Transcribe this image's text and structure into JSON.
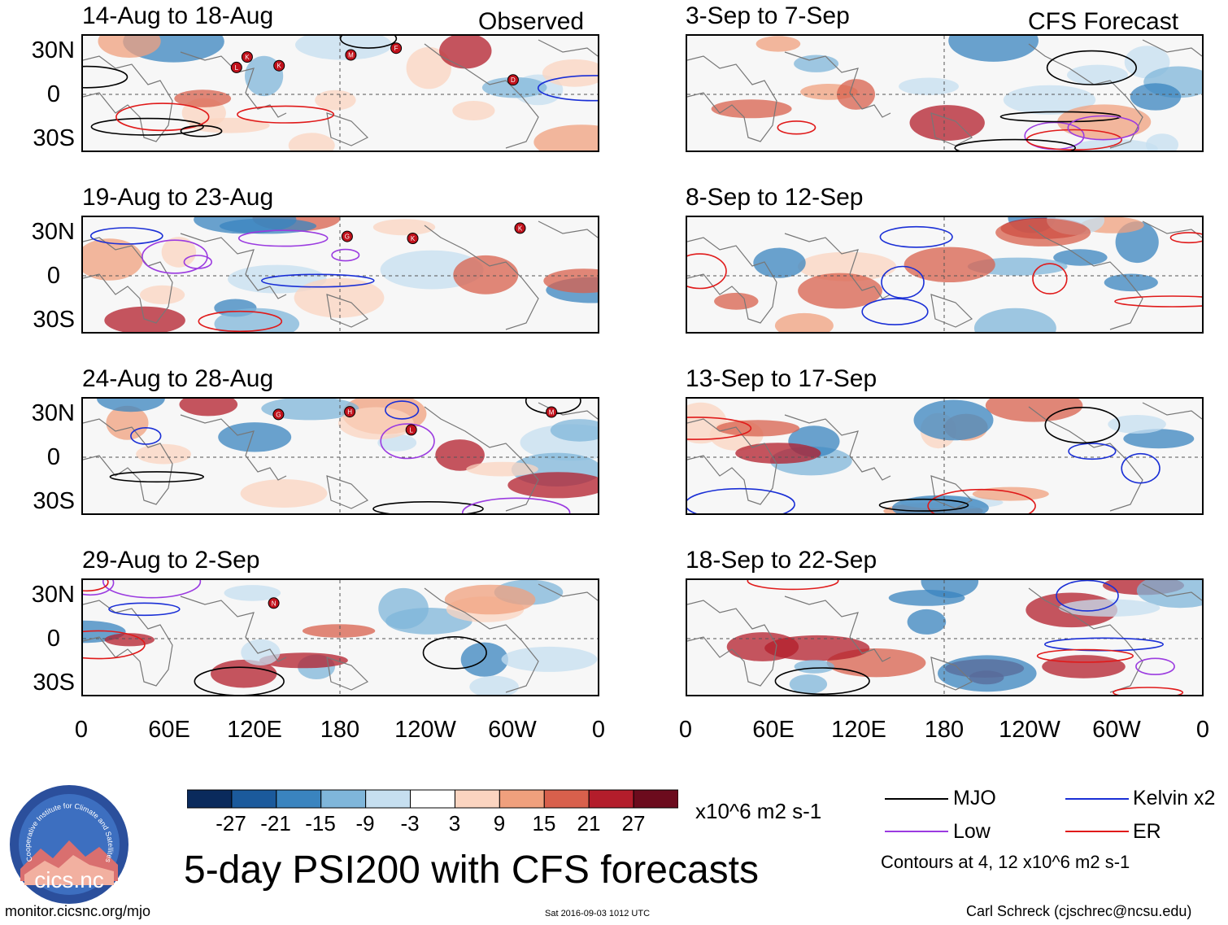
{
  "left_column_tag": "Observed",
  "right_column_tag": "CFS Forecast",
  "observed_panels": [
    {
      "title": "14-Aug to 18-Aug",
      "storm_labels": [
        "L",
        "D",
        "K",
        "K",
        "F",
        "M"
      ]
    },
    {
      "title": "19-Aug to 23-Aug",
      "storm_labels": [
        "K",
        "K",
        "G"
      ]
    },
    {
      "title": "24-Aug to 28-Aug",
      "storm_labels": [
        "L",
        "M",
        "H",
        "G"
      ]
    },
    {
      "title": "29-Aug to 2-Sep",
      "storm_labels": [
        "N"
      ]
    }
  ],
  "forecast_panels": [
    {
      "title": "3-Sep to 7-Sep"
    },
    {
      "title": "8-Sep to 12-Sep"
    },
    {
      "title": "13-Sep to 17-Sep"
    },
    {
      "title": "18-Sep to 22-Sep"
    }
  ],
  "lat_labels": [
    "30N",
    "0",
    "30S"
  ],
  "lon_labels": [
    "0",
    "60E",
    "120E",
    "180",
    "120W",
    "60W",
    "0"
  ],
  "colorbar": {
    "units": "x10^6 m2 s-1",
    "ticks": [
      "-27",
      "-21",
      "-15",
      "-9",
      "-3",
      "3",
      "9",
      "15",
      "21",
      "27"
    ],
    "colors": [
      "#0a2a5c",
      "#1b5a9c",
      "#3a84bf",
      "#7fb6da",
      "#c6dff0",
      "#ffffff",
      "#fbd4c0",
      "#f0a07d",
      "#d8604c",
      "#b31d2b",
      "#6c0b1d"
    ]
  },
  "legend": {
    "items": [
      {
        "label": "MJO",
        "color": "#000000"
      },
      {
        "label": "Kelvin x2",
        "color": "#1a2fd6"
      },
      {
        "label": "Low",
        "color": "#9b3be0"
      },
      {
        "label": "ER",
        "color": "#e01a1a"
      }
    ],
    "note": "Contours at 4, 12 x10^6 m2 s-1"
  },
  "logo_text": {
    "ring": "Cooperative Institute for Climate and Satellites",
    "name": "cics.nc"
  },
  "main_title": "5-day PSI200 with CFS forecasts",
  "footer": {
    "left": "monitor.cicsnc.org/mjo",
    "middle": "Sat 2016-09-03 1012 UTC",
    "right": "Carl Schreck (cjschrec@ncsu.edu)"
  }
}
